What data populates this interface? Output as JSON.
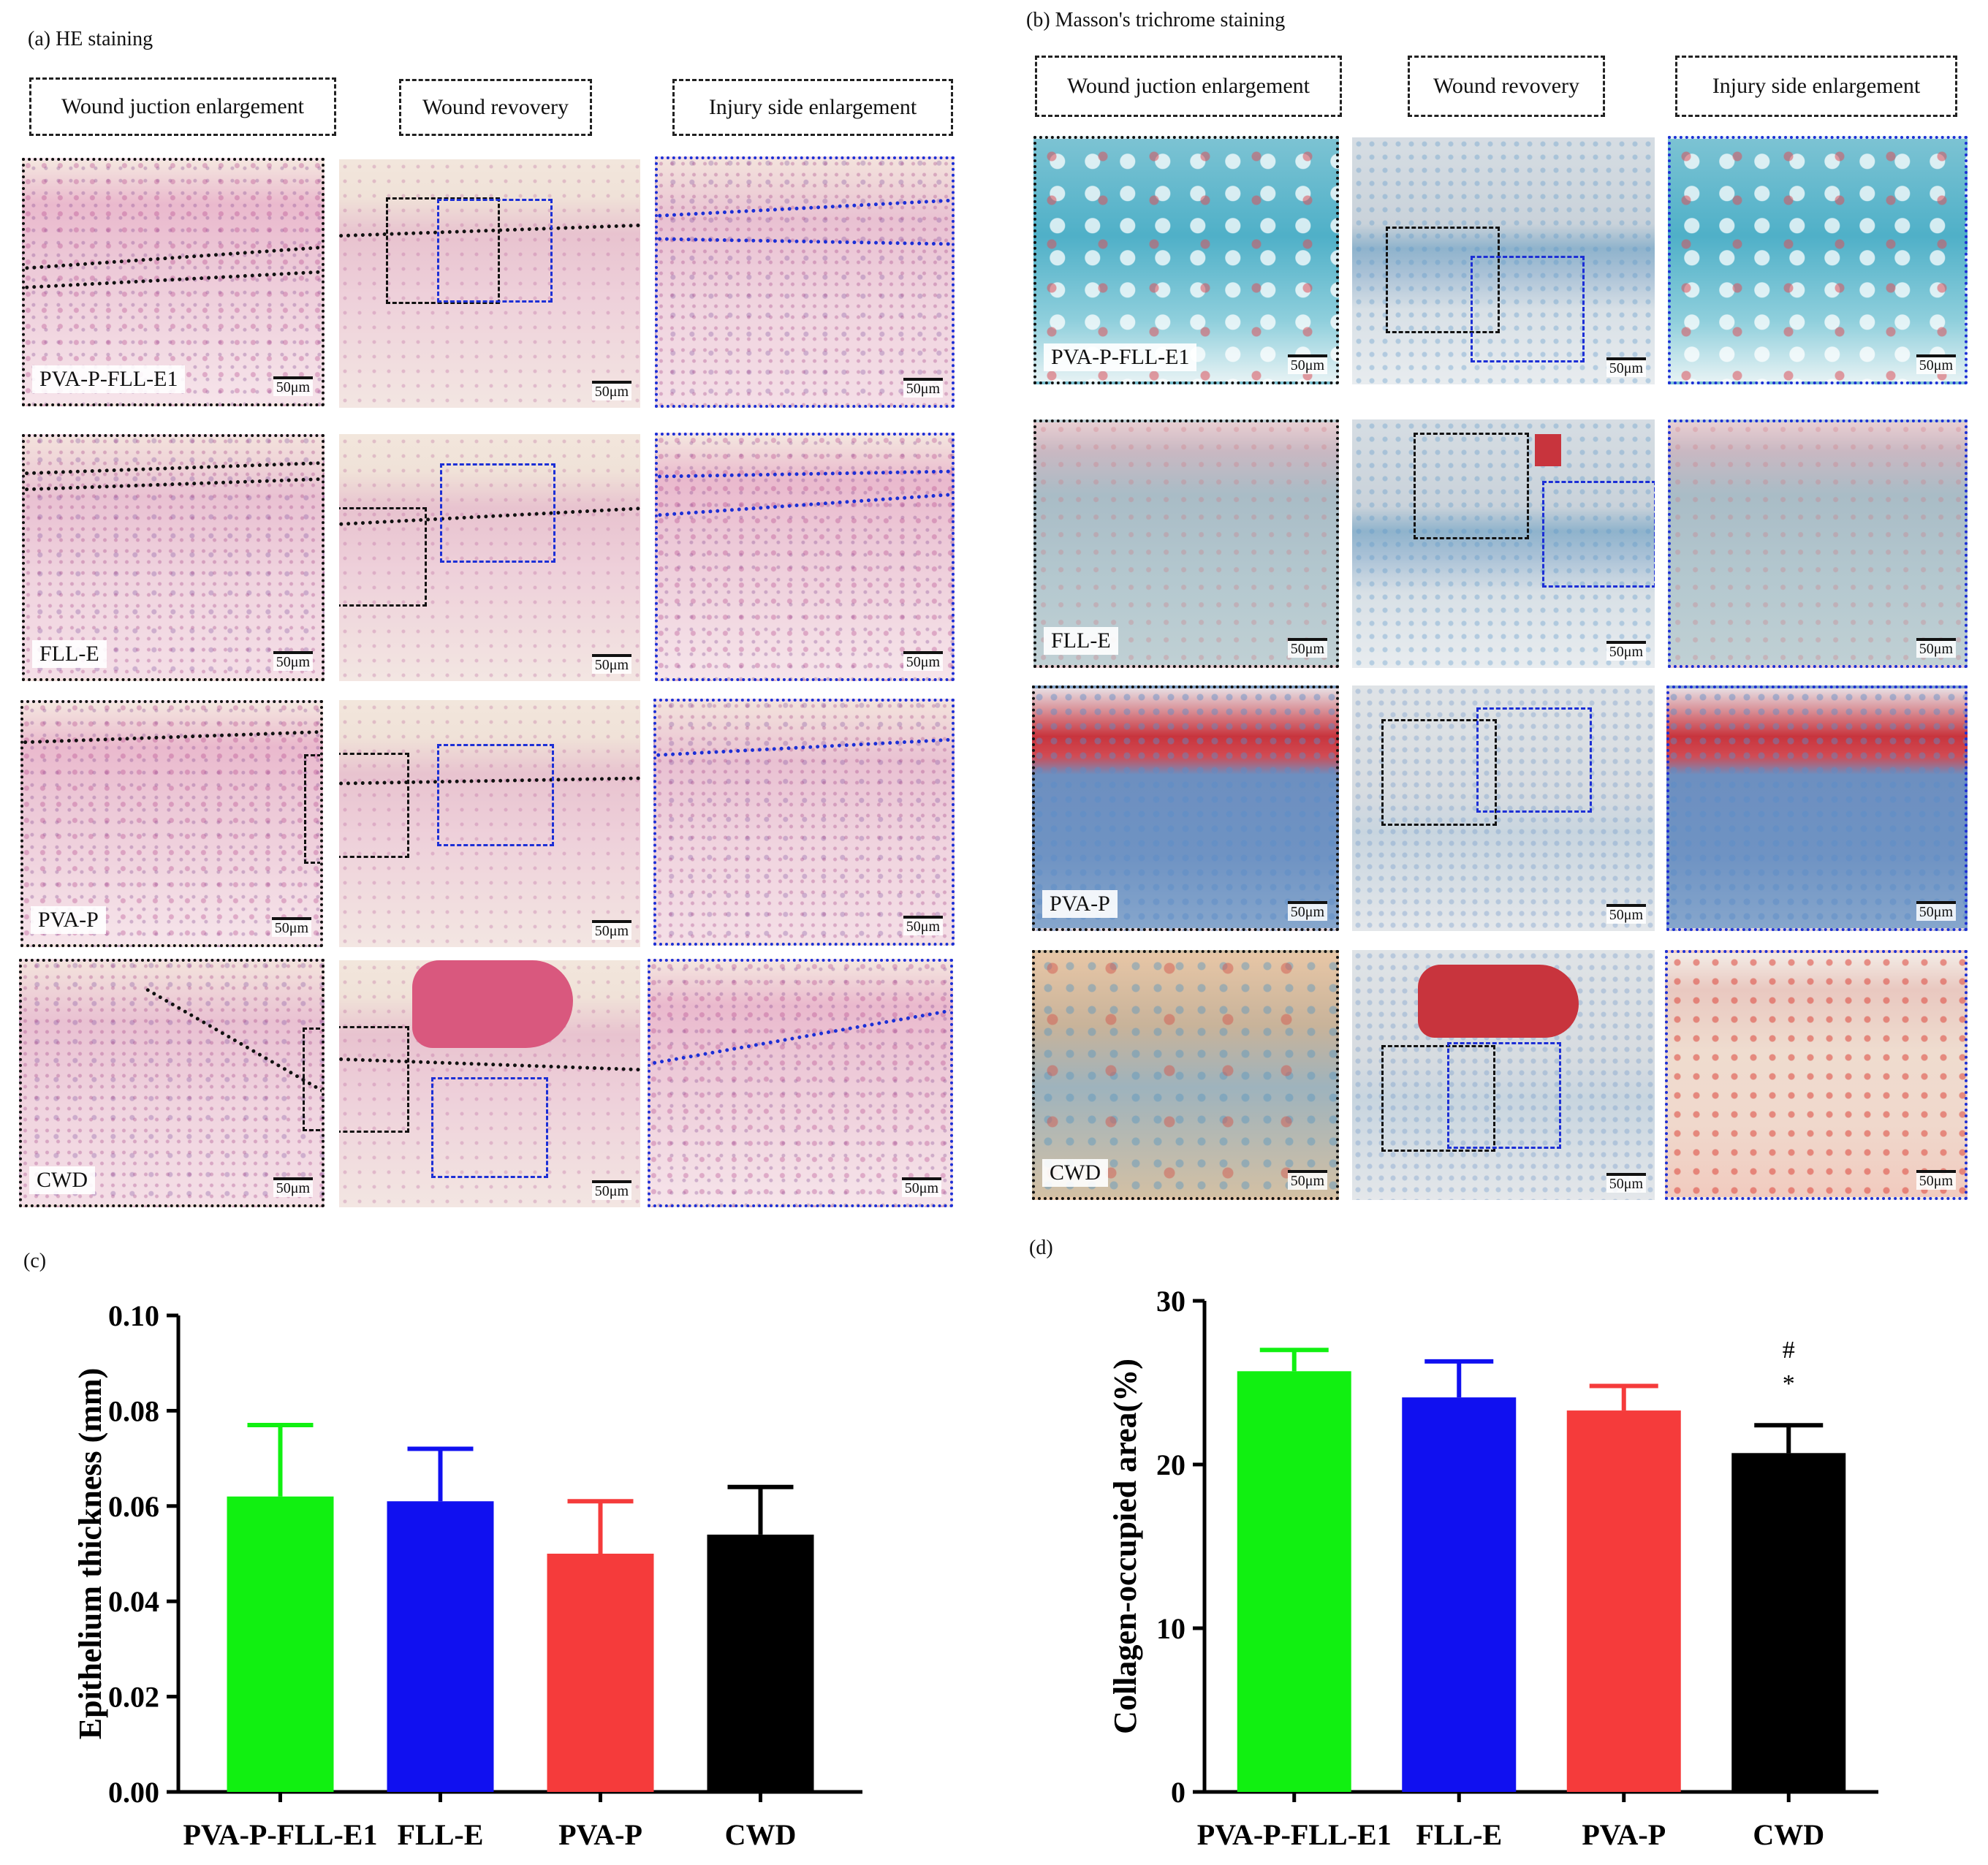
{
  "panels": {
    "a": {
      "label": "(a) HE staining"
    },
    "b": {
      "label": "(b) Masson's trichrome staining"
    },
    "c": {
      "label": "(c)"
    },
    "d": {
      "label": "(d)"
    }
  },
  "column_headers": [
    "Wound juction enlargement",
    "Wound revovery",
    "Injury side enlargement"
  ],
  "groups": [
    "PVA-P-FLL-E1",
    "FLL-E",
    "PVA-P",
    "CWD"
  ],
  "scale_bar": "50μm",
  "colors": {
    "green": "#11f011",
    "blue": "#1010f0",
    "red": "#f53b3b",
    "black": "#000000"
  },
  "chart_data": [
    {
      "type": "bar",
      "panel": "c",
      "title": "",
      "xlabel": "",
      "ylabel": "Epithelium thickness (mm)",
      "categories": [
        "PVA-P-FLL-E1",
        "FLL-E",
        "PVA-P",
        "CWD"
      ],
      "values": [
        0.062,
        0.061,
        0.05,
        0.054
      ],
      "error": [
        0.015,
        0.011,
        0.011,
        0.01
      ],
      "ylim": [
        0,
        0.1
      ],
      "yticks": [
        0.0,
        0.02,
        0.04,
        0.06,
        0.08,
        0.1
      ],
      "ytick_labels": [
        "0.00",
        "0.02",
        "0.04",
        "0.06",
        "0.08",
        "0.10"
      ],
      "annotations": []
    },
    {
      "type": "bar",
      "panel": "d",
      "title": "",
      "xlabel": "",
      "ylabel": "Collagen-occupied area(%)",
      "categories": [
        "PVA-P-FLL-E1",
        "FLL-E",
        "PVA-P",
        "CWD"
      ],
      "values": [
        25.7,
        24.1,
        23.3,
        20.7
      ],
      "error": [
        1.3,
        2.2,
        1.5,
        1.7
      ],
      "ylim": [
        0,
        30
      ],
      "yticks": [
        0,
        10,
        20,
        30
      ],
      "ytick_labels": [
        "0",
        "10",
        "20",
        "30"
      ],
      "annotations": [
        {
          "category": "CWD",
          "symbols": [
            "#",
            "*"
          ]
        }
      ]
    }
  ]
}
